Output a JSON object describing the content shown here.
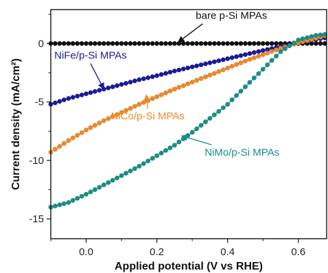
{
  "chart_data": {
    "type": "scatter",
    "xlabel": "Applied potential (V vs RHE)",
    "ylabel": "Current density (mA/cm²)",
    "xlim": [
      -0.1,
      0.68
    ],
    "ylim": [
      -16.7,
      2.9
    ],
    "xticks": [
      0.0,
      0.2,
      0.4,
      0.6
    ],
    "xtick_labels": [
      "0.0",
      "0.2",
      "0.4",
      "0.6"
    ],
    "yticks": [
      0,
      -5,
      -10,
      -15
    ],
    "ytick_labels": [
      "0",
      "-5",
      "-10",
      "-15"
    ],
    "grid": false,
    "legend": "none (direct annotations with arrows)",
    "series": [
      {
        "name": "bare p-Si MPAs",
        "color": "#111111",
        "x": [
          -0.1,
          0.0,
          0.1,
          0.2,
          0.3,
          0.4,
          0.5,
          0.6,
          0.68
        ],
        "y": [
          0.0,
          0.0,
          0.0,
          0.0,
          0.0,
          0.0,
          0.0,
          0.0,
          0.0
        ]
      },
      {
        "name": "NiFe/p-Si MPAs",
        "color": "#1a1a9c",
        "x": [
          -0.1,
          -0.05,
          0.0,
          0.05,
          0.1,
          0.15,
          0.2,
          0.25,
          0.3,
          0.35,
          0.4,
          0.45,
          0.5,
          0.55,
          0.6,
          0.65,
          0.68
        ],
        "y": [
          -5.2,
          -4.7,
          -4.3,
          -3.9,
          -3.5,
          -3.1,
          -2.75,
          -2.35,
          -2.0,
          -1.65,
          -1.3,
          -0.95,
          -0.6,
          -0.25,
          0.05,
          0.35,
          0.5
        ]
      },
      {
        "name": "NiCo/p-Si MPAs",
        "color": "#f08a24",
        "x": [
          -0.1,
          -0.05,
          0.0,
          0.05,
          0.1,
          0.15,
          0.2,
          0.25,
          0.3,
          0.35,
          0.4,
          0.45,
          0.5,
          0.55,
          0.6,
          0.65,
          0.68
        ],
        "y": [
          -9.3,
          -8.3,
          -7.4,
          -6.6,
          -5.9,
          -5.2,
          -4.55,
          -3.9,
          -3.3,
          -2.7,
          -2.1,
          -1.5,
          -0.95,
          -0.4,
          0.05,
          0.45,
          0.7
        ]
      },
      {
        "name": "NiMo/p-Si MPAs",
        "color": "#178f8a",
        "x": [
          -0.1,
          -0.05,
          0.0,
          0.05,
          0.1,
          0.15,
          0.2,
          0.25,
          0.3,
          0.35,
          0.4,
          0.45,
          0.5,
          0.55,
          0.6,
          0.65,
          0.68
        ],
        "y": [
          -14.0,
          -13.6,
          -12.9,
          -12.1,
          -11.3,
          -10.5,
          -9.6,
          -8.7,
          -7.6,
          -6.4,
          -5.2,
          -3.7,
          -2.2,
          -0.7,
          0.3,
          0.7,
          0.8
        ]
      }
    ],
    "annotations": [
      {
        "text": "bare p-Si MPAs",
        "color": "#111111",
        "label_xy": [
          0.31,
          2.1
        ],
        "arrow_to": [
          0.26,
          0.1
        ]
      },
      {
        "text": "NiFe/p-Si MPAs",
        "color": "#1a1a9c",
        "label_xy": [
          -0.09,
          -1.3
        ],
        "arrow_to": [
          0.05,
          -3.9
        ]
      },
      {
        "text": "NiCo/p-Si MPAs",
        "color": "#f08a24",
        "label_xy": [
          0.07,
          -6.5
        ],
        "arrow_to": [
          0.17,
          -4.4
        ]
      },
      {
        "text": "NiMo/p-Si MPAs",
        "color": "#178f8a",
        "label_xy": [
          0.335,
          -9.6
        ],
        "arrow_to": [
          0.27,
          -7.9
        ]
      }
    ]
  }
}
